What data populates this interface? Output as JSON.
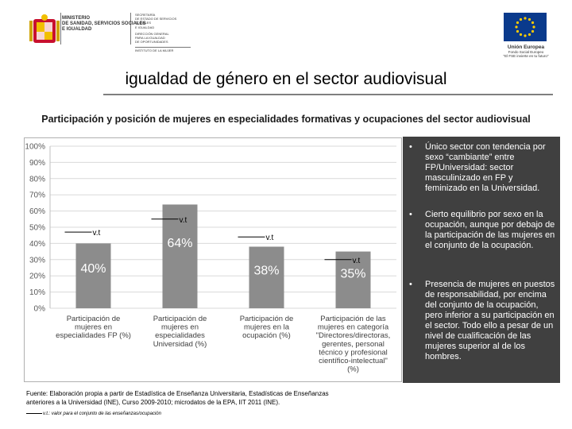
{
  "header": {
    "ministry_lines": [
      "MINISTERIO",
      "DE SANIDAD, SERVICIOS SOCIALES",
      "E IGUALDAD"
    ],
    "org_lines": [
      "SECRETARÍA",
      "DE ESTADO DE SERVICIOS SOCIALES",
      "E IGUALDAD",
      "DIRECCIÓN GENERAL",
      "PARA LA IGUALDAD",
      "DE OPORTUNIDADES",
      "INSTITUTO DE LA MUJER"
    ],
    "eu_label": "Unión Europea",
    "eu_sub1": "Fondo Social Europeo",
    "eu_sub2": "\"El FSE invierte en tu futuro\""
  },
  "title": "igualdad de género en el sector audiovisual",
  "subtitle": "Participación y posición de mujeres en especialidades formativas y ocupaciones del sector audiovisual",
  "colors": {
    "bar": "#8c8c8c",
    "panel": "#404040",
    "grid": "#d9d9d9"
  },
  "chart_data": {
    "type": "bar",
    "ylim": [
      0,
      100
    ],
    "ytick_labels": [
      "100%",
      "90%",
      "80%",
      "70%",
      "60%",
      "50%",
      "40%",
      "30%",
      "20%",
      "10%",
      "0%"
    ],
    "categories": [
      [
        "Participación de",
        "mujeres en",
        "especialidades FP (%)"
      ],
      [
        "Participación de",
        "mujeres en",
        "especialidades",
        "Universidad (%)"
      ],
      [
        "Participación de",
        "mujeres en la",
        "ocupación (%)"
      ],
      [
        "Participación de las",
        "mujeres en categoría",
        "\"Directores/directoras,",
        "gerentes, personal",
        "técnico y profesional",
        "científico-intelectual\"",
        "(%)"
      ]
    ],
    "values": [
      40,
      64,
      38,
      35
    ],
    "data_labels": [
      "40%",
      "64%",
      "38%",
      "35%"
    ],
    "reference_values": [
      47,
      55,
      44,
      30
    ],
    "reference_label": "v.t"
  },
  "bullets": [
    "Único sector con tendencia por sexo “cambiante” entre FP/Universidad: sector masculinizado en FP y feminizado en la Universidad.",
    "Cierto equilibrio por sexo en la ocupación, aunque por debajo de la participación de las mujeres en el conjunto de la ocupación.",
    "Presencia de mujeres en puestos de responsabilidad, por encima del conjunto de la ocupación, pero inferior a su participación en el sector. Todo ello a pesar de un nivel de cualificación de las mujeres superior al de los hombres."
  ],
  "bullet_symbol": "•",
  "source": {
    "line1": "Fuente: Elaboración propia a partir de Estadística de Enseñanza Universitaria, Estadísticas de Enseñanzas",
    "line2": "anteriores a la Universidad (INE), Curso 2009-2010; microdatos de la EPA, IIT 2011 (INE)."
  },
  "footnote": "v.t.: valor para el conjunto de las enseñanzas/ocupación"
}
